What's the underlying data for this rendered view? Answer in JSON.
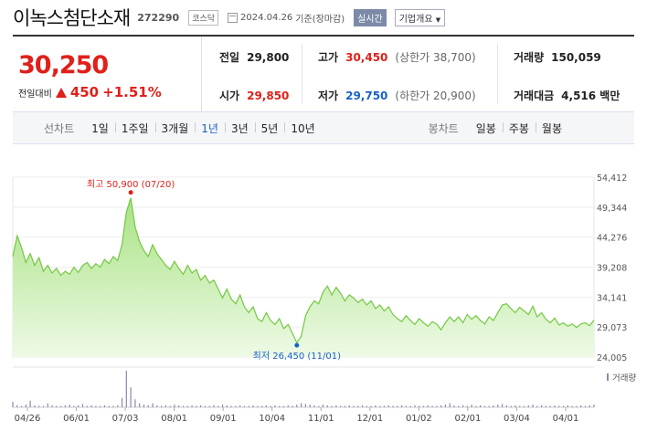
{
  "stock": {
    "name": "이녹스첨단소재",
    "code": "272290",
    "market": "코스닥",
    "date": "2024.04.26",
    "basis": "기준(장마감)",
    "realtime_label": "실시간",
    "company_label": "기업개요",
    "company_icon": "caret-down-icon"
  },
  "price": {
    "current": "30,250",
    "change_label": "전일대비",
    "change_amount": "450",
    "change_percent": "+1.51%",
    "direction_icon": "up-triangle-icon"
  },
  "stats": {
    "prev_label": "전일",
    "prev_value": "29,800",
    "high_label": "고가",
    "high_value": "30,450",
    "upper_limit": "(상한가 38,700)",
    "volume_label": "거래량",
    "volume_value": "150,059",
    "open_label": "시가",
    "open_value": "29,850",
    "low_label": "저가",
    "low_value": "29,750",
    "lower_limit": "(하한가 20,900)",
    "amount_label": "거래대금",
    "amount_value": "4,516 백만"
  },
  "line_tabs": {
    "title": "선차트",
    "items": [
      "1일",
      "1주일",
      "3개월",
      "1년",
      "3년",
      "5년",
      "10년"
    ],
    "active": "1년"
  },
  "candle_tabs": {
    "title": "봉차트",
    "items": [
      "일봉",
      "주봉",
      "월봉"
    ]
  },
  "colors": {
    "up": "#e0201a",
    "down": "#1861c9",
    "area_top": "#a8e283",
    "area_bottom": "#eefae6",
    "line": "#74c843"
  },
  "chart_data": {
    "type": "area",
    "y_ticks": [
      "54,412",
      "49,344",
      "44,276",
      "39,208",
      "34,141",
      "29,073",
      "24,005"
    ],
    "ylim": [
      24005,
      54412
    ],
    "x_ticks": [
      "04/26",
      "06/01",
      "07/03",
      "08/01",
      "09/01",
      "10/04",
      "11/01",
      "12/01",
      "01/02",
      "02/01",
      "03/04",
      "04/01"
    ],
    "volume_label": "거래량",
    "annotations": {
      "high": "최고 50,900 (07/20)",
      "low": "최저 26,450 (11/01)"
    },
    "high_value": 50900,
    "low_value": 26450,
    "values": [
      41000,
      44500,
      42500,
      40000,
      41500,
      39500,
      40800,
      38500,
      39500,
      38200,
      39000,
      37800,
      38500,
      38000,
      39200,
      38300,
      39500,
      40000,
      39000,
      39800,
      39200,
      40500,
      39800,
      41000,
      40300,
      43000,
      48500,
      50900,
      46000,
      43500,
      42000,
      41000,
      43000,
      41500,
      40500,
      39500,
      38800,
      40200,
      39000,
      38000,
      39500,
      38200,
      38800,
      37000,
      37800,
      36500,
      37000,
      35500,
      34000,
      35500,
      33800,
      33000,
      34500,
      32500,
      31500,
      32500,
      30500,
      30000,
      31500,
      30200,
      29500,
      30500,
      28800,
      29500,
      28000,
      26450,
      27500,
      31000,
      32500,
      33500,
      33000,
      35000,
      36000,
      34500,
      35800,
      34800,
      33500,
      34500,
      34000,
      33200,
      33800,
      32800,
      33500,
      32200,
      32800,
      31800,
      32500,
      31200,
      30500,
      30000,
      31000,
      30200,
      29500,
      30500,
      29800,
      29200,
      30000,
      29600,
      28600,
      29800,
      30800,
      30000,
      30800,
      29800,
      31200,
      30400,
      31000,
      30200,
      29600,
      30800,
      30200,
      31500,
      32800,
      33000,
      32200,
      31500,
      32400,
      31800,
      31200,
      32600,
      30800,
      31500,
      30400,
      29800,
      30600,
      29400,
      29800,
      29200,
      29600,
      29000,
      29600,
      29800,
      29300,
      30250
    ],
    "volumes": [
      8,
      3,
      2,
      4,
      10,
      3,
      2,
      2,
      6,
      3,
      2,
      2,
      3,
      4,
      2,
      3,
      5,
      2,
      3,
      2,
      2,
      3,
      2,
      2,
      3,
      14,
      55,
      30,
      12,
      6,
      4,
      3,
      6,
      3,
      2,
      3,
      2,
      4,
      3,
      2,
      2,
      3,
      2,
      3,
      2,
      2,
      3,
      2,
      4,
      3,
      2,
      2,
      3,
      2,
      2,
      3,
      2,
      2,
      3,
      2,
      3,
      2,
      2,
      3,
      2,
      4,
      6,
      5,
      4,
      3,
      2,
      4,
      3,
      2,
      3,
      2,
      2,
      3,
      2,
      2,
      3,
      2,
      2,
      3,
      2,
      2,
      3,
      2,
      2,
      3,
      2,
      2,
      3,
      2,
      2,
      3,
      2,
      2,
      3,
      4,
      6,
      3,
      2,
      3,
      2,
      4,
      2,
      3,
      2,
      2,
      3,
      4,
      5,
      3,
      2,
      3,
      2,
      2,
      3,
      4,
      2,
      3,
      2,
      2,
      3,
      2,
      2,
      3,
      2,
      2,
      3,
      2,
      3,
      4
    ]
  }
}
